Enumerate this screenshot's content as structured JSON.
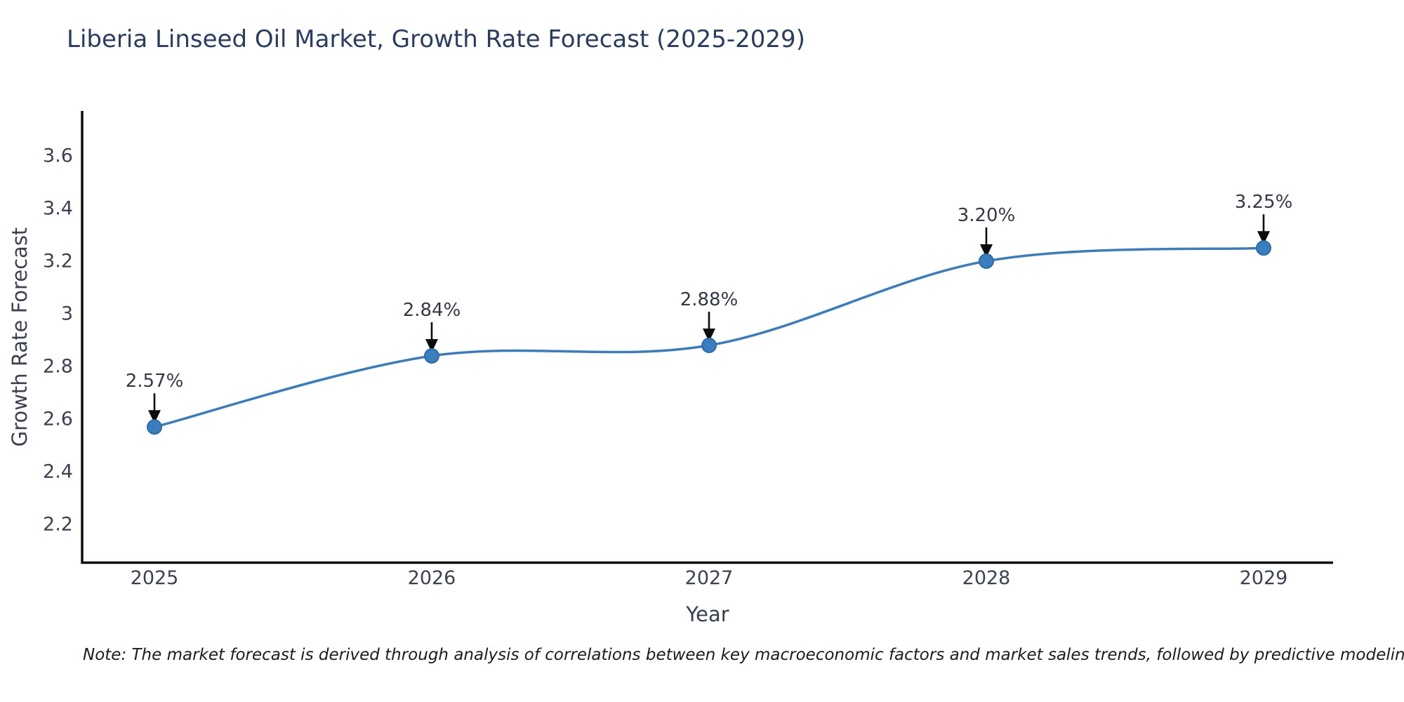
{
  "title": "Liberia Linseed Oil Market, Growth Rate Forecast (2025-2029)",
  "note": "Note: The market forecast is derived through analysis of correlations between key macroeconomic factors and market sales trends, followed by predictive modeling to project future sales",
  "chart_data": {
    "type": "line",
    "title": "Liberia Linseed Oil Market, Growth Rate Forecast (2025-2029)",
    "xlabel": "Year",
    "ylabel": "Growth Rate Forecast",
    "x": [
      "2025",
      "2026",
      "2027",
      "2028",
      "2029"
    ],
    "series": [
      {
        "name": "Growth Rate Forecast",
        "values": [
          2.57,
          2.84,
          2.88,
          3.2,
          3.25
        ]
      }
    ],
    "point_labels": [
      "2.57%",
      "2.84%",
      "2.88%",
      "3.20%",
      "3.25%"
    ],
    "y_ticks": [
      2.2,
      2.4,
      2.6,
      2.8,
      3,
      3.2,
      3.4,
      3.6
    ],
    "y_tick_labels": [
      "2.2",
      "2.4",
      "2.6",
      "2.8",
      "3",
      "3.2",
      "3.4",
      "3.6"
    ],
    "ylim": [
      2.05,
      3.77
    ],
    "grid": false,
    "legend": "none",
    "line_shape": "spline",
    "colors": {
      "line": "#3d7cb8",
      "marker_fill": "#3a7ebf",
      "marker_edge": "#2e6da4",
      "axis": "#0d0d0d",
      "arrow": "#0d0d0d",
      "title_text": "#2b3c5c",
      "tick_text": "#3d4250",
      "note_text": "#1c1c1c"
    }
  }
}
